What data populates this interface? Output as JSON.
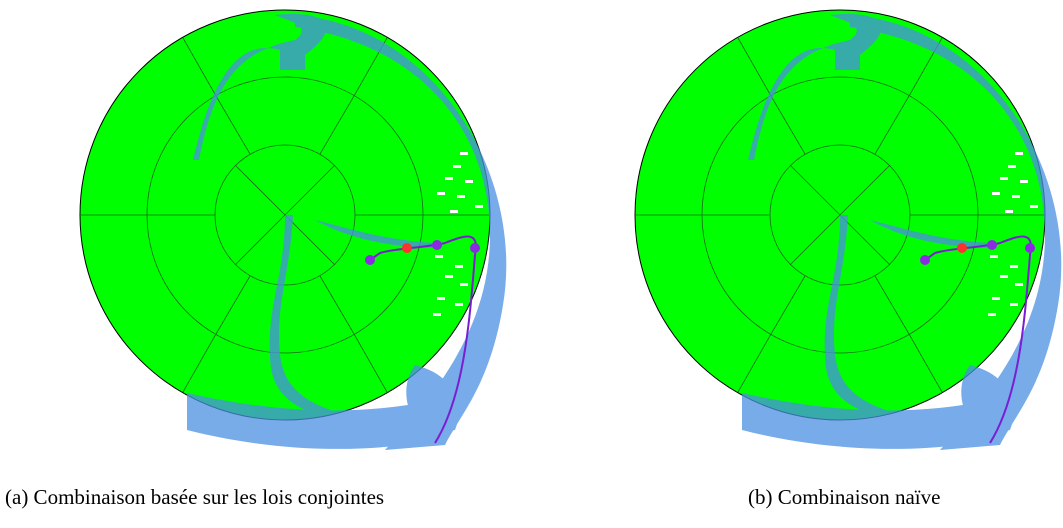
{
  "panels": [
    {
      "caption": "(a) Combinaison basée sur les lois conjointes"
    },
    {
      "caption": "(b) Combinaison naïve"
    }
  ]
}
